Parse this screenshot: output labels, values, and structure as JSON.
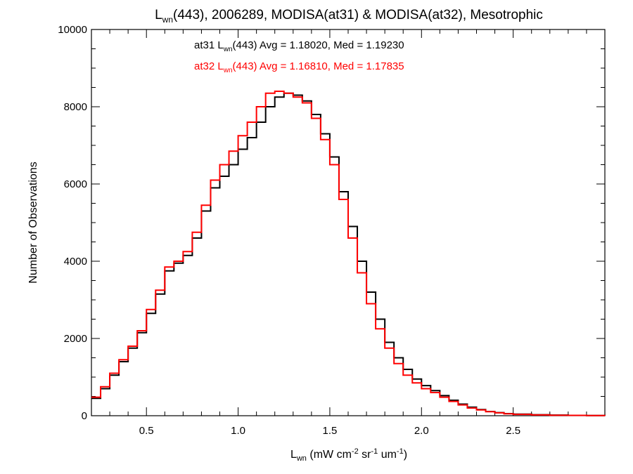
{
  "chart_data": {
    "type": "line",
    "title": {
      "pre": "L",
      "sub": "wn",
      "post": "(443), 2006289, MODISA(at31) & MODISA(at32), Mesotrophic"
    },
    "ylabel": "Number of Observations",
    "xlabel": {
      "pre": "L",
      "sub": "wn",
      "mid1": " (mW cm",
      "sup1": "-2",
      "mid2": " sr",
      "sup2": "-1",
      "mid3": " um",
      "sup3": "-1",
      "end": ")"
    },
    "xlim": [
      0.2,
      3.0
    ],
    "ylim": [
      0,
      10000
    ],
    "x_ticks": [
      "0.5",
      "1.0",
      "1.5",
      "2.0",
      "2.5"
    ],
    "y_ticks": [
      "0",
      "2000",
      "4000",
      "6000",
      "8000",
      "10000"
    ],
    "grid": false,
    "legend": [
      {
        "pre": "at31 L",
        "sub": "wn",
        "post": "(443) Avg = 1.18020, Med = 1.19230",
        "color": "#000000"
      },
      {
        "pre": "at32 L",
        "sub": "wn",
        "post": "(443) Avg = 1.16810, Med = 1.17835",
        "color": "#ff0000"
      }
    ],
    "series": [
      {
        "color": "#000000",
        "x": [
          0.2,
          0.25,
          0.3,
          0.35,
          0.4,
          0.45,
          0.5,
          0.55,
          0.6,
          0.65,
          0.7,
          0.75,
          0.8,
          0.85,
          0.9,
          0.95,
          1.0,
          1.05,
          1.1,
          1.15,
          1.2,
          1.25,
          1.3,
          1.35,
          1.4,
          1.45,
          1.5,
          1.55,
          1.6,
          1.65,
          1.7,
          1.75,
          1.8,
          1.85,
          1.9,
          1.95,
          2.0,
          2.05,
          2.1,
          2.15,
          2.2,
          2.25,
          2.3,
          2.35,
          2.4,
          2.45,
          2.5,
          2.6,
          2.7,
          2.8,
          2.9,
          3.0
        ],
        "values": [
          450,
          700,
          1050,
          1400,
          1750,
          2150,
          2650,
          3150,
          3750,
          3950,
          4150,
          4600,
          5300,
          5900,
          6200,
          6500,
          6900,
          7200,
          7600,
          8000,
          8250,
          8350,
          8300,
          8150,
          7800,
          7300,
          6700,
          5800,
          4900,
          4000,
          3200,
          2500,
          1900,
          1500,
          1200,
          950,
          780,
          650,
          520,
          400,
          300,
          220,
          160,
          110,
          80,
          55,
          40,
          25,
          15,
          10,
          5,
          0
        ]
      },
      {
        "color": "#ff0000",
        "x": [
          0.2,
          0.25,
          0.3,
          0.35,
          0.4,
          0.45,
          0.5,
          0.55,
          0.6,
          0.65,
          0.7,
          0.75,
          0.8,
          0.85,
          0.9,
          0.95,
          1.0,
          1.05,
          1.1,
          1.15,
          1.2,
          1.25,
          1.3,
          1.35,
          1.4,
          1.45,
          1.5,
          1.55,
          1.6,
          1.65,
          1.7,
          1.75,
          1.8,
          1.85,
          1.9,
          1.95,
          2.0,
          2.05,
          2.1,
          2.15,
          2.2,
          2.25,
          2.3,
          2.35,
          2.4,
          2.45,
          2.5,
          2.6,
          2.7,
          2.8,
          2.9,
          3.0
        ],
        "values": [
          480,
          750,
          1100,
          1450,
          1800,
          2200,
          2750,
          3250,
          3850,
          4000,
          4250,
          4750,
          5450,
          6100,
          6500,
          6850,
          7250,
          7600,
          8000,
          8350,
          8400,
          8350,
          8250,
          8100,
          7700,
          7150,
          6500,
          5600,
          4600,
          3700,
          2900,
          2250,
          1750,
          1350,
          1050,
          850,
          700,
          600,
          480,
          370,
          280,
          200,
          150,
          105,
          75,
          50,
          35,
          20,
          12,
          8,
          4,
          0
        ]
      }
    ]
  }
}
